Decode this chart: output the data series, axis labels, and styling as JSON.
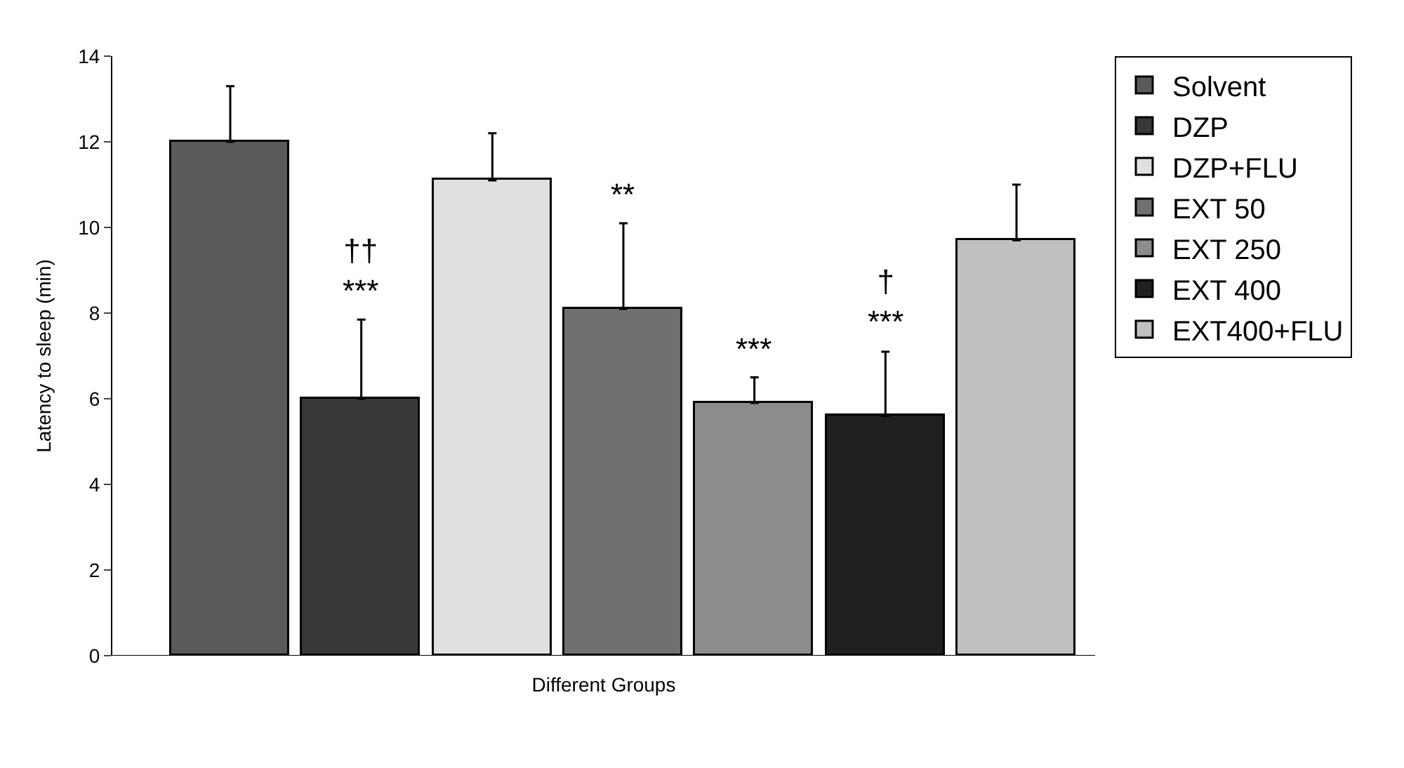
{
  "chart_data": {
    "type": "bar",
    "xlabel": "Different Groups",
    "ylabel": "Latency to sleep (min)",
    "categories": [
      null,
      null,
      null,
      null,
      null,
      null,
      null
    ],
    "ylim": [
      0,
      14
    ],
    "yticks": [
      0,
      2,
      4,
      6,
      8,
      10,
      12,
      14
    ],
    "legend": "right",
    "series": [
      {
        "name": "Solvent",
        "color": "#5a5a5a",
        "values": [
          12,
          null,
          null,
          null,
          null,
          null,
          null
        ],
        "errors": [
          [
            12,
            13.3
          ],
          null,
          null,
          null,
          null,
          null,
          null
        ]
      },
      {
        "name": "DZP",
        "color": "#383838",
        "values": [
          null,
          6.0,
          null,
          null,
          null,
          null,
          null
        ],
        "errors": [
          null,
          [
            6.0,
            7.85
          ],
          null,
          null,
          null,
          null,
          null
        ]
      },
      {
        "name": "DZP+FLU",
        "color": "#e0e0e0",
        "values": [
          null,
          null,
          11.1,
          null,
          null,
          null,
          null
        ],
        "errors": [
          null,
          null,
          [
            11.1,
            12.2
          ],
          null,
          null,
          null,
          null
        ]
      },
      {
        "name": "EXT 50",
        "color": "#707070",
        "values": [
          null,
          null,
          null,
          8.1,
          null,
          null,
          null
        ],
        "errors": [
          null,
          null,
          null,
          [
            8.1,
            10.1
          ],
          null,
          null,
          null
        ]
      },
      {
        "name": "EXT 250",
        "color": "#8c8c8c",
        "values": [
          null,
          null,
          null,
          null,
          5.9,
          null,
          null
        ],
        "errors": [
          null,
          null,
          null,
          null,
          [
            5.9,
            6.5
          ],
          null,
          null
        ]
      },
      {
        "name": "EXT 400",
        "color": "#202020",
        "values": [
          null,
          null,
          null,
          null,
          null,
          5.6,
          null
        ],
        "errors": [
          null,
          null,
          null,
          null,
          null,
          [
            5.6,
            7.1
          ],
          null
        ]
      },
      {
        "name": "EXT400+FLU",
        "color": "#c0c0c0",
        "values": [
          null,
          null,
          null,
          null,
          null,
          null,
          9.7
        ],
        "errors": [
          null,
          null,
          null,
          null,
          null,
          null,
          [
            9.7,
            11.0
          ]
        ]
      }
    ],
    "annotations": [
      "††\n***",
      "**",
      "***",
      "†\n***"
    ]
  }
}
